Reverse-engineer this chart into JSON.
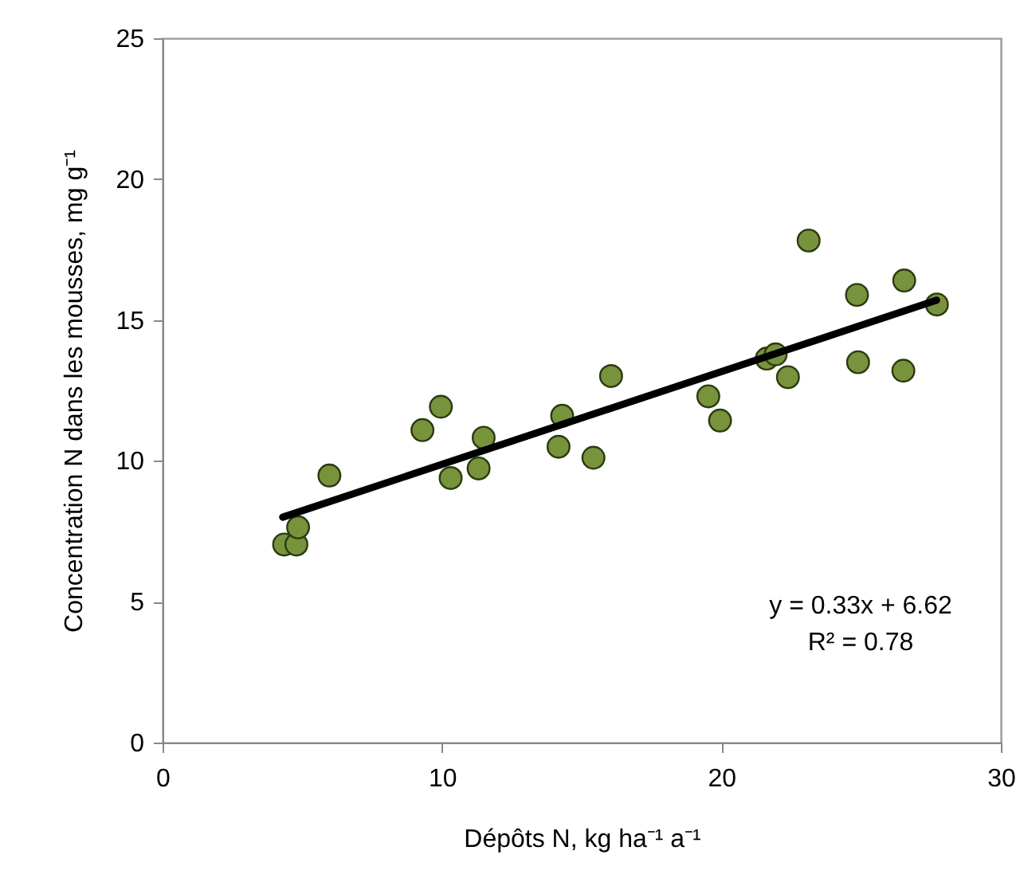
{
  "chart_data": {
    "type": "scatter",
    "xlabel": "Dépôts N, kg ha⁻¹ a⁻¹",
    "ylabel": "Concentration N dans les mousses, mg g⁻¹",
    "xlim": [
      0,
      30
    ],
    "xticks": [
      0,
      10,
      20,
      30
    ],
    "ylim": [
      0,
      25
    ],
    "yticks": [
      0,
      5,
      10,
      15,
      20,
      25
    ],
    "grid": false,
    "marker": "circle",
    "annotations": [
      "y = 0.33x + 6.62",
      "R² = 0.78"
    ],
    "series": [
      {
        "color": "#77933c",
        "x": [
          4.35,
          4.79,
          4.85,
          5.97,
          9.3,
          9.96,
          10.31,
          11.31,
          11.49,
          14.17,
          14.3,
          15.42,
          16.05,
          19.53,
          19.95,
          21.62,
          21.94,
          22.38,
          23.12,
          24.85,
          24.89,
          26.54,
          26.51,
          27.71
        ],
        "values": [
          7.03,
          7.03,
          7.64,
          9.48,
          11.09,
          11.92,
          9.39,
          9.73,
          10.82,
          10.5,
          11.6,
          10.11,
          13.01,
          12.29,
          11.43,
          13.63,
          13.78,
          12.97,
          17.82,
          15.89,
          13.5,
          16.4,
          13.2,
          15.55
        ]
      },
      {
        "type": "line",
        "color": "#000000",
        "line_style": "solid",
        "marker": "none",
        "x": [
          4.3,
          27.7
        ],
        "values": [
          8.0,
          15.7
        ]
      }
    ]
  }
}
